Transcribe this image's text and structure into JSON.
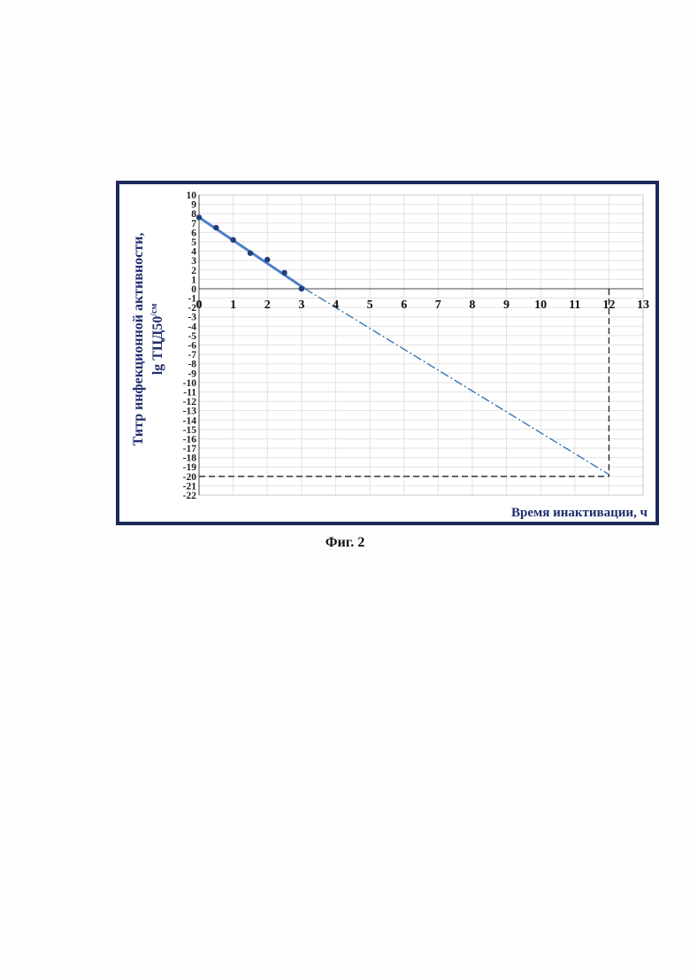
{
  "figure_caption": "Фиг. 2",
  "colors": {
    "frame": "#1b2a5a",
    "axis_title": "#1f2e6e",
    "regression_line": "#4a7fc9",
    "points": "#1f3f7a",
    "extrapolation": "#2c6fb0",
    "guide": "#222222",
    "grid": "#e2e2e2"
  },
  "chart_data": {
    "type": "scatter",
    "title": "",
    "xlabel": "Время инактивации, ч",
    "ylabel_line1": "Титр инфекционной активности,",
    "ylabel_line2": "lg ТЦД50",
    "ylabel_superscript": "/см",
    "xlim": [
      0,
      13
    ],
    "ylim": [
      -22,
      10
    ],
    "grid": true,
    "x_ticks": [
      0,
      1,
      2,
      3,
      4,
      5,
      6,
      7,
      8,
      9,
      10,
      11,
      12,
      13
    ],
    "y_ticks": [
      10,
      9,
      8,
      7,
      6,
      5,
      4,
      3,
      2,
      1,
      0,
      -1,
      -2,
      -3,
      -4,
      -5,
      -6,
      -7,
      -8,
      -9,
      -10,
      -11,
      -12,
      -13,
      -14,
      -15,
      -16,
      -17,
      -18,
      -19,
      -20,
      -21,
      -22
    ],
    "points": [
      {
        "x": 0,
        "y": 7.6
      },
      {
        "x": 0.5,
        "y": 6.5
      },
      {
        "x": 1,
        "y": 5.2
      },
      {
        "x": 1.5,
        "y": 3.8
      },
      {
        "x": 2,
        "y": 3.1
      },
      {
        "x": 2.5,
        "y": 1.7
      },
      {
        "x": 3,
        "y": 0
      }
    ],
    "fit_line": {
      "x": [
        0,
        3.1
      ],
      "y": [
        7.6,
        0
      ]
    },
    "extrapolation_line": {
      "x": [
        3.1,
        12
      ],
      "y": [
        0,
        -19.8
      ]
    },
    "guide_lines": {
      "x": 12,
      "y": -20
    }
  }
}
